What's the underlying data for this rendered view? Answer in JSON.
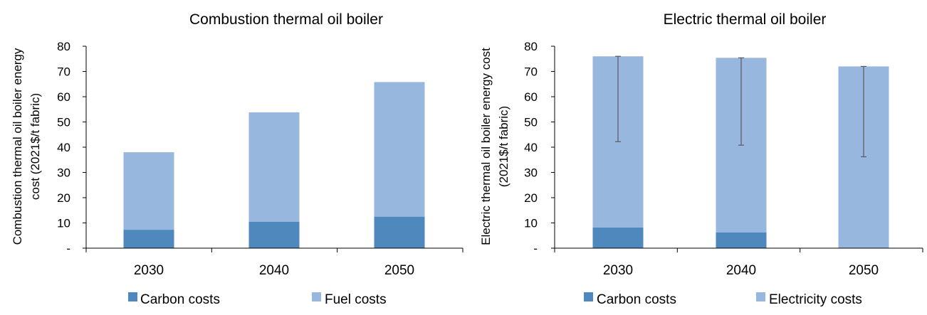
{
  "colors": {
    "carbon": "#4f88bd",
    "fuel": "#98b7df",
    "error": "#595959",
    "axis": "#000000"
  },
  "chart_data": [
    {
      "type": "bar",
      "stacked": true,
      "title": "Combustion thermal oil boiler",
      "ylabel_lines": [
        "Combustion thermal oil boiler energy",
        "cost (2021$/t fabric)"
      ],
      "categories": [
        "2030",
        "2040",
        "2050"
      ],
      "ylim": [
        0,
        80
      ],
      "yticks": [
        {
          "value": 0,
          "label": "-"
        },
        {
          "value": 10,
          "label": "10"
        },
        {
          "value": 20,
          "label": "20"
        },
        {
          "value": 30,
          "label": "30"
        },
        {
          "value": 40,
          "label": "40"
        },
        {
          "value": 50,
          "label": "50"
        },
        {
          "value": 60,
          "label": "60"
        },
        {
          "value": 70,
          "label": "70"
        },
        {
          "value": 80,
          "label": "80"
        }
      ],
      "series": [
        {
          "name": "Carbon costs",
          "values": [
            7.3,
            10.5,
            12.5
          ],
          "color": "#4f88bd"
        },
        {
          "name": "Fuel costs",
          "values": [
            30.7,
            43.3,
            53.3
          ],
          "color": "#98b7df"
        }
      ],
      "legend": "bottom",
      "grid": false
    },
    {
      "type": "bar",
      "stacked": true,
      "title": "Electric thermal oil boiler",
      "ylabel_lines": [
        "Electric thermal oil boiler energy cost",
        "(2021$/t fabric)"
      ],
      "categories": [
        "2030",
        "2040",
        "2050"
      ],
      "ylim": [
        0,
        80
      ],
      "yticks": [
        {
          "value": 0,
          "label": "-"
        },
        {
          "value": 10,
          "label": "10"
        },
        {
          "value": 20,
          "label": "20"
        },
        {
          "value": 30,
          "label": "30"
        },
        {
          "value": 40,
          "label": "40"
        },
        {
          "value": 50,
          "label": "50"
        },
        {
          "value": 60,
          "label": "60"
        },
        {
          "value": 70,
          "label": "70"
        },
        {
          "value": 80,
          "label": "80"
        }
      ],
      "series": [
        {
          "name": "Carbon costs",
          "values": [
            8.2,
            6.2,
            0
          ],
          "color": "#4f88bd"
        },
        {
          "name": "Electricity costs",
          "values": [
            67.8,
            69.2,
            72.0
          ],
          "color": "#98b7df"
        }
      ],
      "error_bars": {
        "low": [
          42.2,
          40.8,
          36.2
        ],
        "high": [
          76.0,
          75.4,
          72.0
        ]
      },
      "legend": "bottom",
      "grid": false
    }
  ]
}
